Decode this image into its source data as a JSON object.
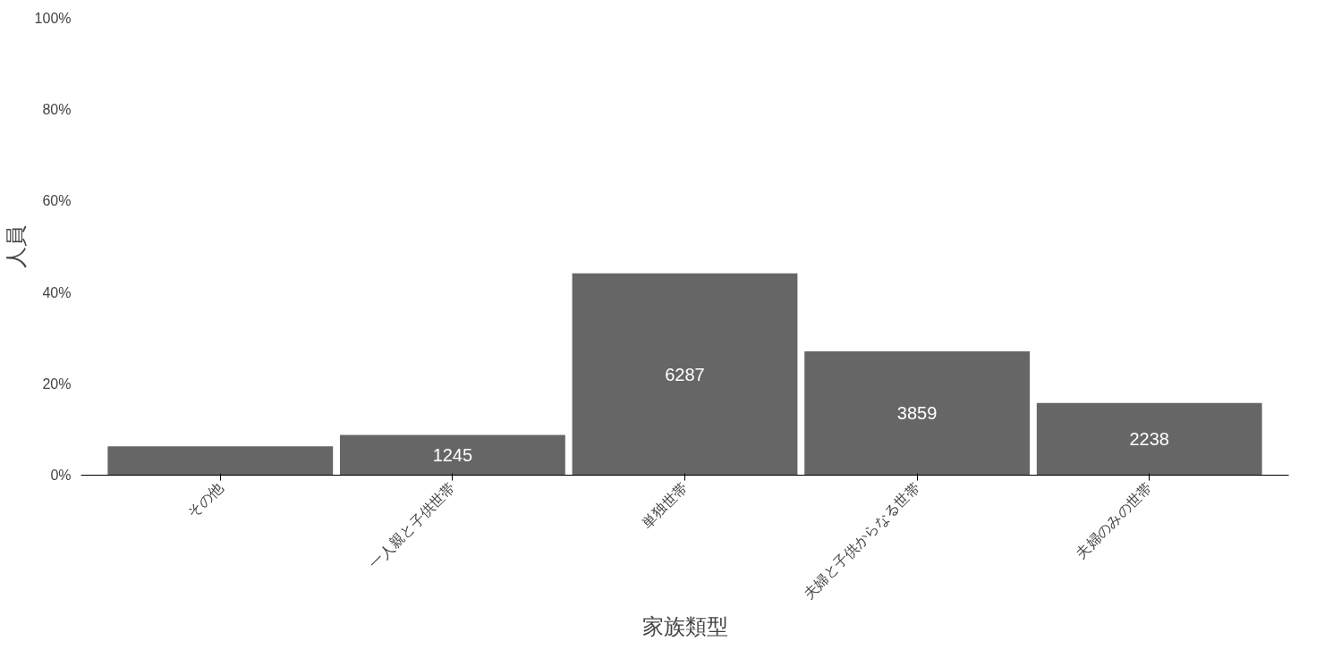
{
  "chart_data": {
    "type": "bar",
    "xlabel": "家族類型",
    "ylabel": "人員",
    "categories": [
      "その他",
      "一人親と子供世帯",
      "単独世帯",
      "夫婦と子供からなる世帯",
      "夫婦のみの世帯"
    ],
    "values": [
      6.3,
      8.8,
      44.2,
      27.1,
      15.8
    ],
    "annotations": [
      "1245",
      "6287",
      "3859",
      "2238"
    ],
    "color": "#666666",
    "ylim": [
      0,
      100
    ],
    "yticks": [
      {
        "value": 0,
        "label": "0%"
      },
      {
        "value": 20,
        "label": "20%"
      },
      {
        "value": 40,
        "label": "40%"
      },
      {
        "value": 60,
        "label": "60%"
      },
      {
        "value": 80,
        "label": "80%"
      },
      {
        "value": 100,
        "label": "100%"
      }
    ],
    "grid": false
  }
}
